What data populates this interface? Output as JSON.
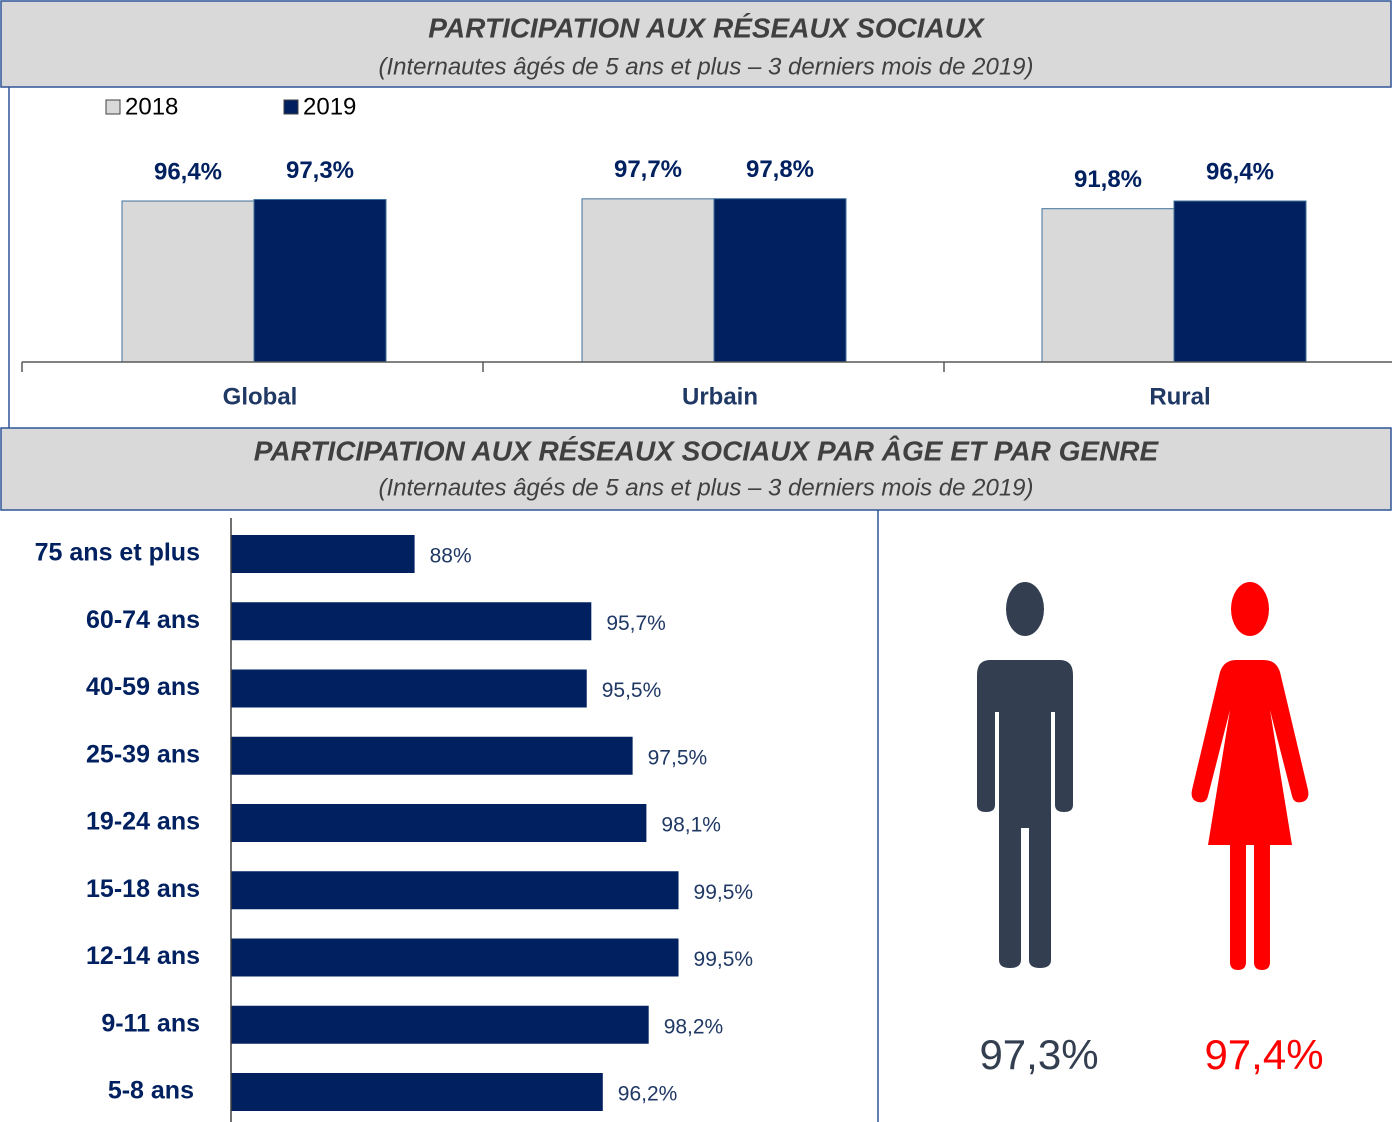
{
  "chart_data": [
    {
      "type": "bar",
      "title": "PARTICIPATION AUX RÉSEAUX SOCIAUX",
      "subtitle": "(Internautes âgés de 5 ans et plus – 3 derniers mois de 2019)",
      "categories": [
        "Global",
        "Urbain",
        "Rural"
      ],
      "series": [
        {
          "name": "2018",
          "color": "#d9d9d9",
          "values": [
            96.4,
            97.7,
            91.8
          ],
          "value_labels": [
            "96,4%",
            "97,7%",
            "91,8%"
          ]
        },
        {
          "name": "2019",
          "color": "#002060",
          "values": [
            97.3,
            97.8,
            96.4
          ],
          "value_labels": [
            "97,3%",
            "97,8%",
            "96,4%"
          ]
        }
      ],
      "ylim": [
        0,
        100
      ],
      "legend": "top-left"
    },
    {
      "type": "hbar",
      "title": "PARTICIPATION AUX RÉSEAUX SOCIAUX PAR ÂGE ET PAR GENRE",
      "subtitle": "(Internautes âgés de 5 ans et plus – 3 derniers mois de 2019)",
      "categories": [
        "75 ans et plus",
        "60-74 ans",
        "40-59 ans",
        "25-39 ans",
        "19-24 ans",
        "15-18 ans",
        "12-14 ans",
        "9-11 ans",
        "5-8 ans"
      ],
      "values": [
        88,
        95.7,
        95.5,
        97.5,
        98.1,
        99.5,
        99.5,
        98.2,
        96.2
      ],
      "value_labels": [
        "88%",
        "95,7%",
        "95,5%",
        "97,5%",
        "98,1%",
        "99,5%",
        "99,5%",
        "98,2%",
        "96,2%"
      ],
      "color": "#002060",
      "xlim": [
        80,
        100
      ]
    },
    {
      "type": "pictogram",
      "values": [
        97.3,
        97.4
      ],
      "value_labels": [
        "97,3%",
        "97,4%"
      ],
      "colors": [
        "#333f50",
        "#ff0000"
      ]
    }
  ]
}
